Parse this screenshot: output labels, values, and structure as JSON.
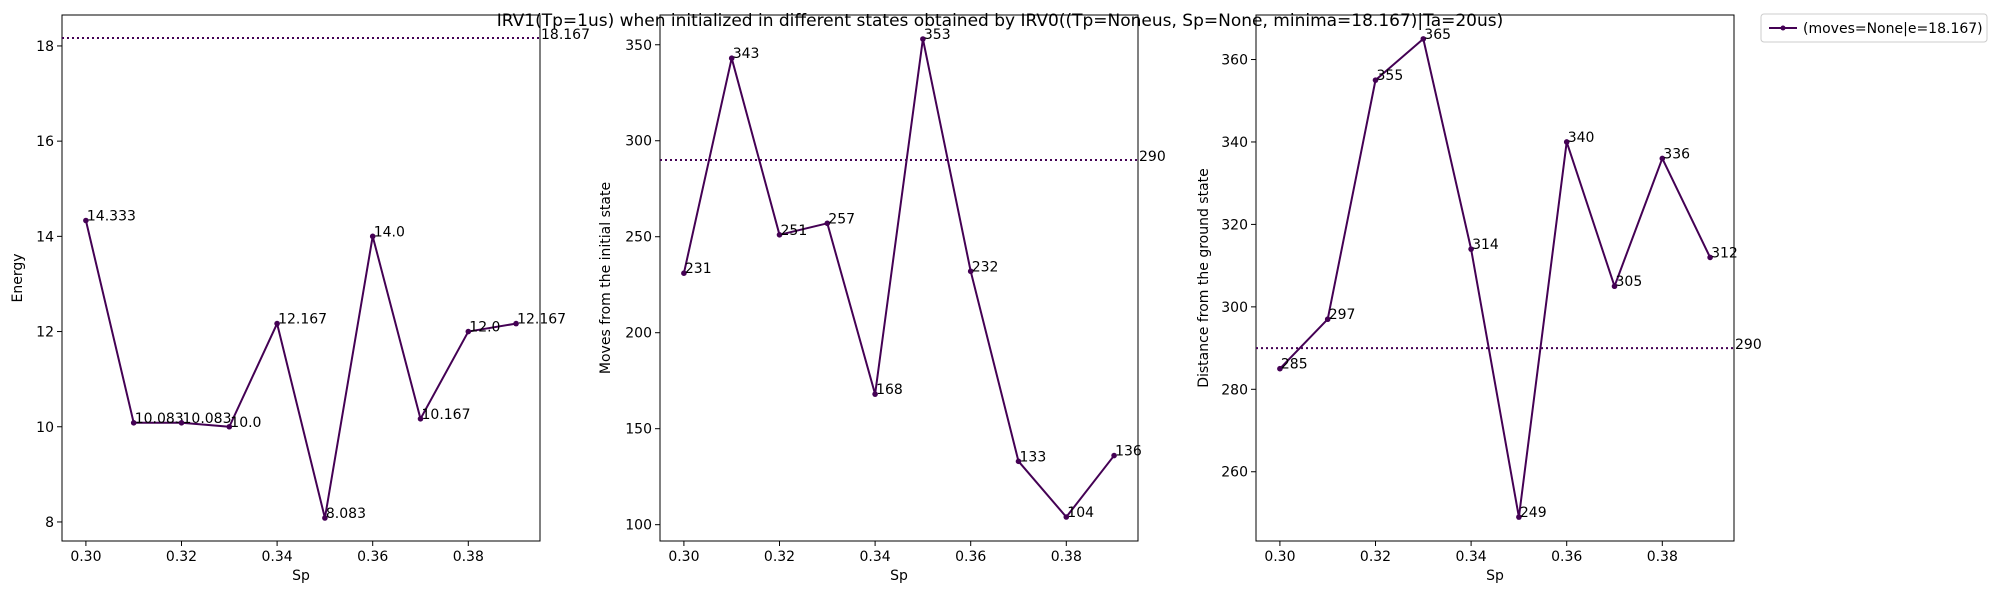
{
  "figure": {
    "title": "IRV1(Tp=1us) when initialized in different states obtained by IRV0((Tp=Noneus, Sp=None, minima=18.167)|Ta=20us)",
    "legend": {
      "label": "(moves=None|e=18.167)",
      "placement": "outside-top-right"
    }
  },
  "colors": {
    "series": "#440154",
    "axes": "#000000",
    "background": "#ffffff"
  },
  "chart_data": [
    {
      "type": "line",
      "xlabel": "Sp",
      "ylabel": "Energy",
      "x": [
        0.3,
        0.31,
        0.32,
        0.33,
        0.34,
        0.35,
        0.36,
        0.37,
        0.38,
        0.39
      ],
      "y": [
        14.333,
        10.083,
        10.083,
        10.0,
        12.167,
        8.083,
        14.0,
        10.167,
        12.0,
        12.167
      ],
      "point_labels": [
        "14.333",
        "10.083",
        "10.083",
        "10.0",
        "12.167",
        "8.083",
        "14.0",
        "10.167",
        "12.0",
        "12.167"
      ],
      "hline": {
        "value": 18.167,
        "label": "18.167",
        "style": "dotted"
      },
      "xlim": [
        0.295,
        0.395
      ],
      "ylim": [
        7.6,
        18.65
      ],
      "xticks": [
        0.3,
        0.32,
        0.34,
        0.36,
        0.38
      ],
      "xtick_labels": [
        "0.30",
        "0.32",
        "0.34",
        "0.36",
        "0.38"
      ],
      "yticks": [
        8,
        10,
        12,
        14,
        16,
        18
      ],
      "ytick_labels": [
        "8",
        "10",
        "12",
        "14",
        "16",
        "18"
      ],
      "grid": false
    },
    {
      "type": "line",
      "xlabel": "Sp",
      "ylabel": "Moves from the initial state",
      "x": [
        0.3,
        0.31,
        0.32,
        0.33,
        0.34,
        0.35,
        0.36,
        0.37,
        0.38,
        0.39
      ],
      "y": [
        231,
        343,
        251,
        257,
        168,
        353,
        232,
        133,
        104,
        136
      ],
      "point_labels": [
        "231",
        "343",
        "251",
        "257",
        "168",
        "353",
        "232",
        "133",
        "104",
        "136"
      ],
      "hline": {
        "value": 290,
        "label": "290",
        "style": "dotted"
      },
      "xlim": [
        0.295,
        0.395
      ],
      "ylim": [
        91.5,
        365.5
      ],
      "xticks": [
        0.3,
        0.32,
        0.34,
        0.36,
        0.38
      ],
      "xtick_labels": [
        "0.30",
        "0.32",
        "0.34",
        "0.36",
        "0.38"
      ],
      "yticks": [
        100,
        150,
        200,
        250,
        300,
        350
      ],
      "ytick_labels": [
        "100",
        "150",
        "200",
        "250",
        "300",
        "350"
      ],
      "grid": false
    },
    {
      "type": "line",
      "xlabel": "Sp",
      "ylabel": "Distance from the ground state",
      "x": [
        0.3,
        0.31,
        0.32,
        0.33,
        0.34,
        0.35,
        0.36,
        0.37,
        0.38,
        0.39
      ],
      "y": [
        285,
        297,
        355,
        365,
        314,
        249,
        340,
        305,
        336,
        312
      ],
      "point_labels": [
        "285",
        "297",
        "355",
        "365",
        "314",
        "249",
        "340",
        "305",
        "336",
        "312"
      ],
      "hline": {
        "value": 290,
        "label": "290",
        "style": "dotted"
      },
      "xlim": [
        0.295,
        0.395
      ],
      "ylim": [
        243.2,
        370.8
      ],
      "xticks": [
        0.3,
        0.32,
        0.34,
        0.36,
        0.38
      ],
      "xtick_labels": [
        "0.30",
        "0.32",
        "0.34",
        "0.36",
        "0.38"
      ],
      "yticks": [
        260,
        280,
        300,
        320,
        340,
        360
      ],
      "ytick_labels": [
        "260",
        "280",
        "300",
        "320",
        "340",
        "360"
      ],
      "grid": false
    }
  ]
}
